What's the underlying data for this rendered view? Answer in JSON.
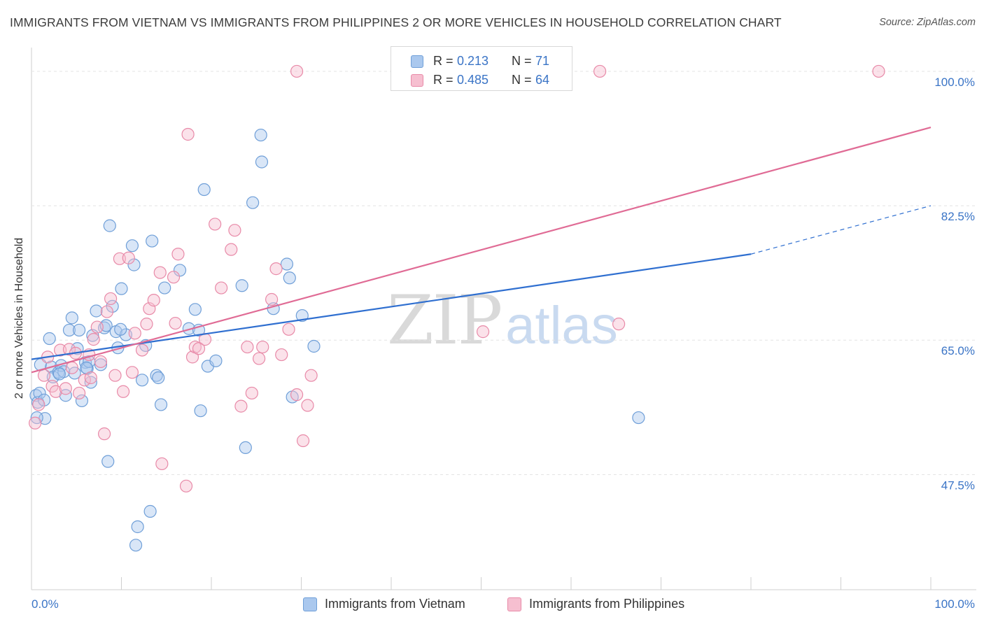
{
  "title": "IMMIGRANTS FROM VIETNAM VS IMMIGRANTS FROM PHILIPPINES 2 OR MORE VEHICLES IN HOUSEHOLD CORRELATION CHART",
  "source": "Source: ZipAtlas.com",
  "watermark": {
    "zip": "ZIP",
    "atlas": "atlas"
  },
  "legend_top": [
    {
      "r_label": "R =",
      "r_value": "0.213",
      "n_label": "N =",
      "n_value": "71",
      "color": "#aac8ee",
      "border": "#6f9fd8"
    },
    {
      "r_label": "R =",
      "r_value": "0.485",
      "n_label": "N =",
      "n_value": "64",
      "color": "#f6bfd0",
      "border": "#e88aa8"
    }
  ],
  "legend_bottom": [
    "Immigrants from Vietnam",
    "Immigrants from Philippines"
  ],
  "chart_data": {
    "type": "scatter",
    "title": "IMMIGRANTS FROM VIETNAM VS IMMIGRANTS FROM PHILIPPINES 2 OR MORE VEHICLES IN HOUSEHOLD CORRELATION CHART",
    "xlabel": "",
    "ylabel": "2 or more Vehicles in Household",
    "xlim": [
      0,
      100
    ],
    "ylim": [
      32.5,
      102
    ],
    "x_tick_labels": [
      "0.0%",
      "100.0%"
    ],
    "y_ticks": [
      47.5,
      65.0,
      82.5,
      100.0
    ],
    "y_tick_labels": [
      "47.5%",
      "65.0%",
      "82.5%",
      "100.0%"
    ],
    "grid": true,
    "legend_position": "top-center",
    "series": [
      {
        "name": "Immigrants from Vietnam",
        "color": "#6f9fd8",
        "fill": "rgba(170,200,238,0.45)",
        "trend_color": "#2f6fd0",
        "trend": {
          "x0": 0,
          "y0": 62.5,
          "x1": 80,
          "y1": 76.2,
          "dash_to_x": 100,
          "dash_to_y": 82.5
        },
        "points": [
          [
            0.5,
            57.8
          ],
          [
            0.7,
            56.9
          ],
          [
            0.9,
            58.1
          ],
          [
            1.0,
            61.8
          ],
          [
            1.4,
            57.2
          ],
          [
            1.5,
            54.8
          ],
          [
            2.0,
            65.2
          ],
          [
            2.2,
            61.5
          ],
          [
            2.4,
            60.2
          ],
          [
            3.0,
            60.8
          ],
          [
            3.3,
            61.7
          ],
          [
            3.6,
            60.9
          ],
          [
            3.8,
            57.8
          ],
          [
            4.2,
            66.3
          ],
          [
            4.5,
            67.9
          ],
          [
            4.8,
            60.7
          ],
          [
            5.1,
            63.9
          ],
          [
            5.3,
            66.3
          ],
          [
            5.6,
            57.1
          ],
          [
            6.0,
            62.1
          ],
          [
            6.2,
            61.3
          ],
          [
            6.4,
            62.2
          ],
          [
            6.6,
            59.5
          ],
          [
            6.8,
            65.6
          ],
          [
            7.2,
            68.8
          ],
          [
            7.7,
            61.8
          ],
          [
            8.1,
            66.6
          ],
          [
            8.3,
            66.9
          ],
          [
            8.5,
            49.2
          ],
          [
            8.7,
            79.9
          ],
          [
            9.0,
            69.4
          ],
          [
            9.4,
            66.1
          ],
          [
            9.6,
            64.0
          ],
          [
            10.0,
            71.7
          ],
          [
            10.5,
            65.7
          ],
          [
            11.2,
            77.3
          ],
          [
            11.4,
            74.8
          ],
          [
            11.6,
            38.3
          ],
          [
            11.8,
            40.7
          ],
          [
            12.3,
            59.8
          ],
          [
            12.7,
            64.3
          ],
          [
            13.2,
            42.7
          ],
          [
            13.4,
            77.9
          ],
          [
            13.9,
            60.4
          ],
          [
            14.1,
            60.1
          ],
          [
            14.4,
            56.6
          ],
          [
            14.8,
            71.8
          ],
          [
            16.5,
            74.1
          ],
          [
            17.5,
            66.5
          ],
          [
            18.2,
            69.0
          ],
          [
            18.6,
            66.3
          ],
          [
            18.8,
            55.8
          ],
          [
            19.2,
            84.6
          ],
          [
            19.6,
            61.6
          ],
          [
            20.5,
            62.3
          ],
          [
            23.4,
            72.1
          ],
          [
            23.8,
            51.0
          ],
          [
            24.6,
            82.9
          ],
          [
            25.5,
            91.7
          ],
          [
            25.6,
            88.2
          ],
          [
            26.9,
            69.1
          ],
          [
            28.4,
            74.9
          ],
          [
            28.7,
            73.1
          ],
          [
            29.0,
            57.6
          ],
          [
            30.1,
            68.2
          ],
          [
            31.4,
            64.2
          ],
          [
            67.5,
            54.9
          ],
          [
            0.6,
            54.9
          ],
          [
            3.1,
            60.6
          ],
          [
            6.1,
            61.4
          ],
          [
            9.9,
            66.4
          ]
        ]
      },
      {
        "name": "Immigrants from Philippines",
        "color": "#e88aa8",
        "fill": "rgba(246,191,208,0.45)",
        "trend_color": "#e06b95",
        "trend": {
          "x0": 0,
          "y0": 60.8,
          "x1": 100,
          "y1": 92.7
        },
        "points": [
          [
            0.4,
            54.2
          ],
          [
            0.8,
            56.6
          ],
          [
            1.4,
            60.4
          ],
          [
            1.8,
            62.8
          ],
          [
            2.3,
            59.0
          ],
          [
            2.7,
            58.3
          ],
          [
            3.2,
            63.7
          ],
          [
            3.8,
            58.7
          ],
          [
            4.2,
            63.8
          ],
          [
            4.5,
            61.4
          ],
          [
            4.9,
            63.3
          ],
          [
            5.3,
            58.1
          ],
          [
            5.9,
            59.8
          ],
          [
            6.4,
            63.1
          ],
          [
            6.6,
            60.1
          ],
          [
            6.9,
            65.1
          ],
          [
            7.3,
            66.7
          ],
          [
            7.7,
            62.2
          ],
          [
            8.1,
            52.8
          ],
          [
            8.4,
            68.7
          ],
          [
            8.8,
            70.4
          ],
          [
            9.3,
            60.4
          ],
          [
            9.8,
            75.6
          ],
          [
            10.2,
            58.3
          ],
          [
            10.8,
            75.7
          ],
          [
            11.2,
            60.8
          ],
          [
            11.5,
            65.9
          ],
          [
            12.3,
            63.7
          ],
          [
            12.8,
            67.1
          ],
          [
            13.1,
            69.1
          ],
          [
            13.6,
            70.2
          ],
          [
            14.3,
            73.8
          ],
          [
            14.5,
            48.9
          ],
          [
            15.8,
            73.2
          ],
          [
            16.0,
            67.2
          ],
          [
            17.2,
            46.0
          ],
          [
            17.4,
            91.8
          ],
          [
            17.9,
            62.8
          ],
          [
            18.2,
            64.1
          ],
          [
            18.6,
            63.9
          ],
          [
            19.3,
            65.1
          ],
          [
            20.4,
            80.1
          ],
          [
            21.1,
            71.8
          ],
          [
            22.2,
            76.8
          ],
          [
            22.6,
            79.3
          ],
          [
            23.3,
            56.4
          ],
          [
            24.0,
            64.1
          ],
          [
            24.5,
            58.1
          ],
          [
            25.3,
            62.6
          ],
          [
            25.7,
            64.1
          ],
          [
            26.7,
            70.3
          ],
          [
            27.2,
            74.3
          ],
          [
            27.8,
            63.1
          ],
          [
            28.6,
            66.4
          ],
          [
            29.5,
            57.9
          ],
          [
            30.2,
            51.9
          ],
          [
            30.7,
            56.5
          ],
          [
            31.1,
            60.4
          ],
          [
            29.5,
            100.0
          ],
          [
            63.2,
            100.0
          ],
          [
            65.3,
            67.1
          ],
          [
            94.2,
            100.0
          ],
          [
            50.2,
            66.1
          ],
          [
            16.3,
            76.2
          ]
        ]
      }
    ]
  }
}
